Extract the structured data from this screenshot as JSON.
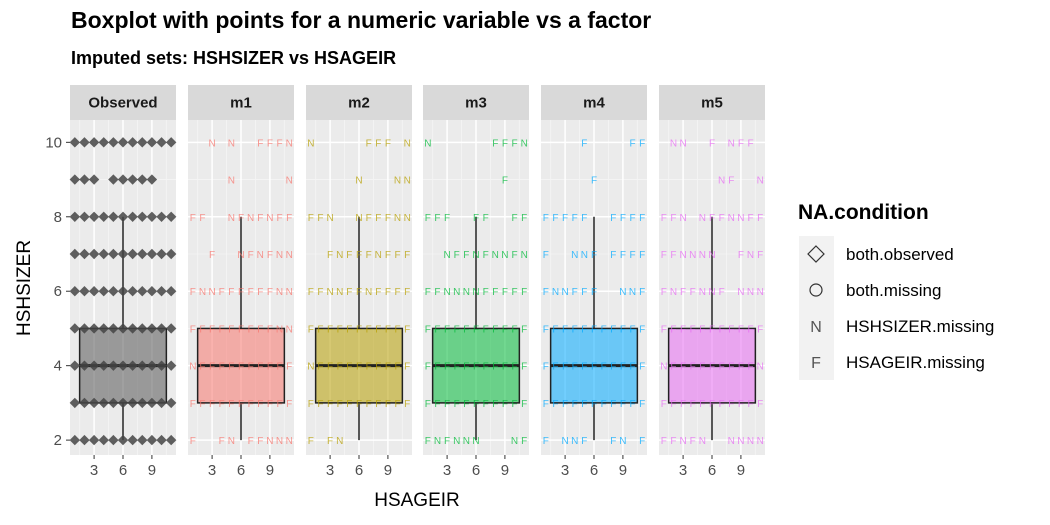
{
  "chart_data": {
    "type": "boxplot",
    "title": "Boxplot with points for a numeric variable vs a factor",
    "subtitle": "Imputed sets:  HSHSIZER vs HSAGEIR",
    "xlabel": "HSAGEIR",
    "ylabel": "HSHSIZER",
    "x_ticks": [
      3,
      6,
      9
    ],
    "y_ticks": [
      2,
      4,
      6,
      8,
      10
    ],
    "xlim": [
      0.5,
      11.5
    ],
    "ylim": [
      1.6,
      10.6
    ],
    "grid": true,
    "legend": {
      "title": "NA.condition",
      "position": "right",
      "entries": [
        {
          "label": "both.observed",
          "shape": "diamond"
        },
        {
          "label": "both.missing",
          "shape": "circle"
        },
        {
          "label": "HSHSIZER.missing",
          "shape": "N"
        },
        {
          "label": "HSAGEIR.missing",
          "shape": "F"
        }
      ]
    },
    "panels": [
      {
        "label": "Observed",
        "color": "#555555",
        "box": {
          "lower_whisker": 2,
          "q1": 3,
          "median": 4,
          "q3": 5,
          "upper_whisker": 8
        },
        "rows": [
          {
            "y": 10,
            "x": [
              1,
              2,
              3,
              4,
              5,
              6,
              7,
              8,
              9,
              10,
              11
            ]
          },
          {
            "y": 9,
            "x": [
              1,
              2,
              3,
              5,
              6,
              7,
              8,
              9
            ]
          },
          {
            "y": 8,
            "x": [
              1,
              2,
              3,
              4,
              5,
              6,
              7,
              8,
              9,
              10,
              11
            ]
          },
          {
            "y": 7,
            "x": [
              1,
              2,
              3,
              4,
              5,
              6,
              7,
              8,
              9,
              10,
              11
            ]
          },
          {
            "y": 6,
            "x": [
              1,
              2,
              3,
              4,
              5,
              6,
              7,
              8,
              9,
              10,
              11
            ]
          },
          {
            "y": 5,
            "x": [
              1,
              2,
              3,
              4,
              5,
              6,
              7,
              8,
              9,
              10,
              11
            ]
          },
          {
            "y": 4,
            "x": [
              1,
              2,
              3,
              4,
              5,
              6,
              7,
              8,
              9,
              10,
              11
            ]
          },
          {
            "y": 3,
            "x": [
              1,
              2,
              3,
              4,
              5,
              6,
              7,
              8,
              9,
              10,
              11
            ]
          },
          {
            "y": 2,
            "x": [
              1,
              2,
              3,
              4,
              5,
              6,
              7,
              8,
              9,
              10,
              11
            ]
          }
        ]
      },
      {
        "label": "m1",
        "color": "#F8766D",
        "box": {
          "lower_whisker": 2,
          "q1": 3,
          "median": 4,
          "q3": 5,
          "upper_whisker": 8
        },
        "rows": [
          {
            "y": 10,
            "marks": "..N.N..FFFN"
          },
          {
            "y": 9,
            "marks": "....N.....N"
          },
          {
            "y": 8,
            "marks": "FF..NFNFNFF"
          },
          {
            "y": 7,
            "marks": "..F..NFNFNN"
          },
          {
            "y": 6,
            "marks": "FNNFFFFFFNN"
          },
          {
            "y": 5,
            "marks": "FFFFFFFFFNN"
          },
          {
            "y": 4,
            "marks": "NFFFFFFFFFF"
          },
          {
            "y": 3,
            "marks": "FFFFFFFFFFF"
          },
          {
            "y": 2,
            "marks": "F..FN.FFNNN"
          }
        ]
      },
      {
        "label": "m2",
        "color": "#B79F00",
        "box": {
          "lower_whisker": 2,
          "q1": 3,
          "median": 4,
          "q3": 5,
          "upper_whisker": 8
        },
        "rows": [
          {
            "y": 10,
            "marks": "N.....FFF.N"
          },
          {
            "y": 9,
            "marks": ".....N...NN"
          },
          {
            "y": 8,
            "marks": "FFN..NFFFNN"
          },
          {
            "y": 7,
            "marks": "..FNFFFNFFF"
          },
          {
            "y": 6,
            "marks": "FFNNFFNFFFF"
          },
          {
            "y": 5,
            "marks": "FFFFFFFFFFF"
          },
          {
            "y": 4,
            "marks": "NFFFFFFFFFF"
          },
          {
            "y": 3,
            "marks": "FFFFFFFFFFF"
          },
          {
            "y": 2,
            "marks": "F.FN......."
          }
        ]
      },
      {
        "label": "m3",
        "color": "#00BA38",
        "box": {
          "lower_whisker": 2,
          "q1": 3,
          "median": 4,
          "q3": 5,
          "upper_whisker": 8
        },
        "rows": [
          {
            "y": 10,
            "marks": "N......FFFN"
          },
          {
            "y": 9,
            "marks": "........F.."
          },
          {
            "y": 8,
            "marks": "FFF..FF..FF"
          },
          {
            "y": 7,
            "marks": "..NFFNFNNFN"
          },
          {
            "y": 6,
            "marks": "FFNNNNFFFFF"
          },
          {
            "y": 5,
            "marks": "FFFFFFFFFFF"
          },
          {
            "y": 4,
            "marks": "FFFFFFFFFFF"
          },
          {
            "y": 3,
            "marks": "FFFFFFFFFFF"
          },
          {
            "y": 2,
            "marks": "FNFNNN...NF"
          }
        ]
      },
      {
        "label": "m4",
        "color": "#00A9FF",
        "box": {
          "lower_whisker": 2,
          "q1": 3,
          "median": 4,
          "q3": 5,
          "upper_whisker": 8
        },
        "rows": [
          {
            "y": 10,
            "marks": "....F....FF"
          },
          {
            "y": 9,
            "marks": ".....F....."
          },
          {
            "y": 8,
            "marks": "FFFFF..FFFF"
          },
          {
            "y": 7,
            "marks": "F..NNF.FFFF"
          },
          {
            "y": 6,
            "marks": "FNNFFF..NNF"
          },
          {
            "y": 5,
            "marks": "FFFFFFFFFFF"
          },
          {
            "y": 4,
            "marks": "FFFFFFFFFFF"
          },
          {
            "y": 3,
            "marks": "FFFFFFFFFFF"
          },
          {
            "y": 2,
            "marks": "F.NNF..FN.F"
          }
        ]
      },
      {
        "label": "m5",
        "color": "#E76BF3",
        "box": {
          "lower_whisker": 2,
          "q1": 3,
          "median": 4,
          "q3": 5,
          "upper_whisker": 8
        },
        "rows": [
          {
            "y": 10,
            "marks": ".NN..F.NFF."
          },
          {
            "y": 9,
            "marks": "......NF..N"
          },
          {
            "y": 8,
            "marks": "FFN.NFFNNFF"
          },
          {
            "y": 7,
            "marks": "FFNNNN..FNF"
          },
          {
            "y": 6,
            "marks": "FNFFNNF.NNN"
          },
          {
            "y": 5,
            "marks": "FFFFFFFFFFF"
          },
          {
            "y": 4,
            "marks": "NFFFFFFFFFN"
          },
          {
            "y": 3,
            "marks": "FFFFFFFFFFF"
          },
          {
            "y": 2,
            "marks": "FFNFN..NNNN"
          }
        ]
      }
    ]
  }
}
